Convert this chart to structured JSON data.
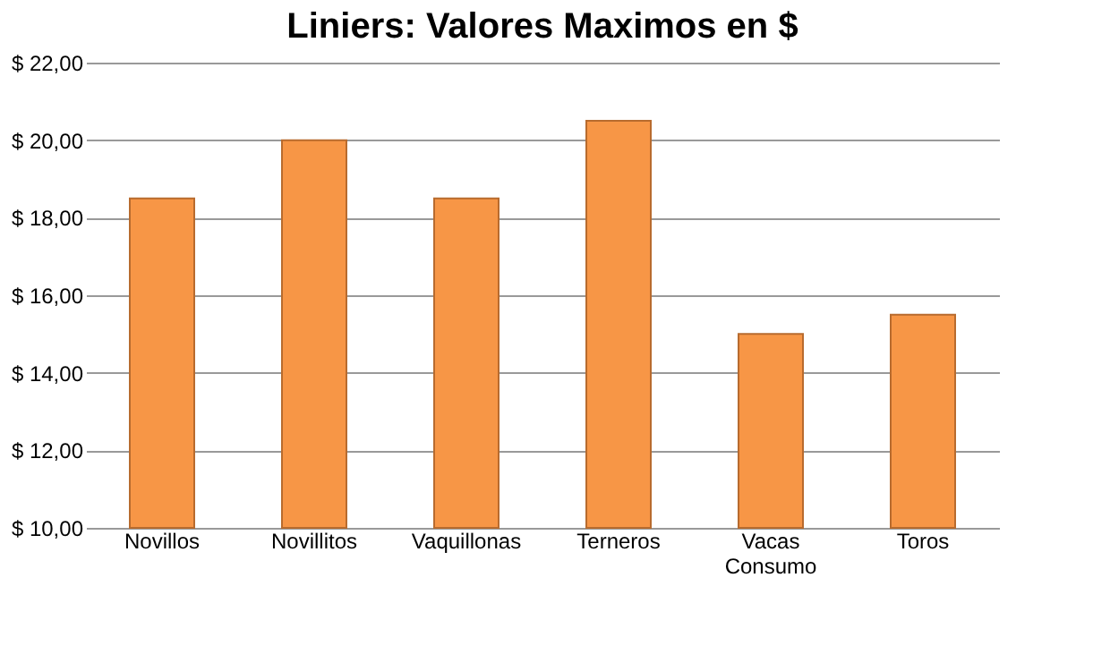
{
  "chart_data": {
    "type": "bar",
    "title": "Liniers: Valores Maximos en $",
    "categories": [
      "Novillos",
      "Novillitos",
      "Vaquillonas",
      "Terneros",
      "Vacas Consumo",
      "Toros"
    ],
    "values": [
      18.5,
      20.0,
      18.5,
      20.5,
      15.0,
      15.5
    ],
    "color": "#f79646",
    "ylim": [
      10,
      22
    ],
    "yticks": [
      {
        "value": 10,
        "label": "$ 10,00"
      },
      {
        "value": 12,
        "label": "$ 12,00"
      },
      {
        "value": 14,
        "label": "$ 14,00"
      },
      {
        "value": 16,
        "label": "$ 16,00"
      },
      {
        "value": 18,
        "label": "$ 18,00"
      },
      {
        "value": 20,
        "label": "$ 20,00"
      },
      {
        "value": 22,
        "label": "$ 22,00"
      }
    ],
    "grid": "y"
  }
}
